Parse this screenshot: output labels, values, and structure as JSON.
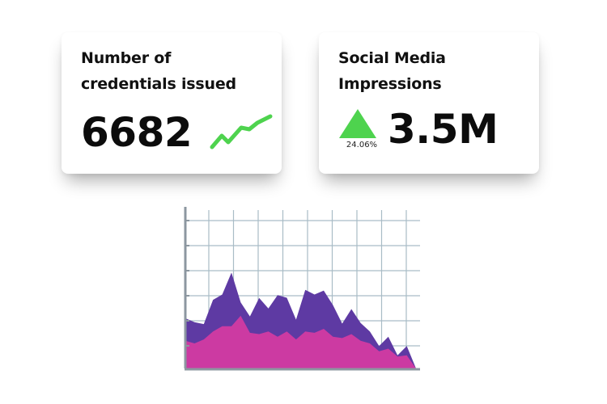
{
  "colors": {
    "accent_green": "#4ed34e",
    "series_purple": "#5e3aa3",
    "series_magenta": "#cc3aa2",
    "grid": "#a9bcc6",
    "axis": "#8c97a0"
  },
  "credentials_card": {
    "title_line1": "Number of",
    "title_line2": "credentials issued",
    "value": "6682",
    "trend_icon": "trend-up-sparkline-icon"
  },
  "social_card": {
    "title_line1": "Social Media",
    "title_line2": "Impressions",
    "change_percent": "24.06%",
    "change_icon": "up-triangle-icon",
    "value": "3.5M"
  },
  "area_chart": {
    "type": "area",
    "series": [
      {
        "values": [
          1.9,
          1.75,
          1.68,
          2.6,
          2.8,
          3.63,
          2.5,
          1.97,
          2.67,
          2.27,
          2.78,
          2.68,
          1.85,
          2.98,
          2.8,
          2.95,
          2.4,
          1.7,
          2.25,
          1.72,
          1.4,
          0.85,
          1.2,
          0.5,
          0.85,
          0.0
        ]
      },
      {
        "values": [
          1.05,
          0.95,
          1.1,
          1.4,
          1.6,
          1.6,
          2.0,
          1.35,
          1.3,
          1.4,
          1.2,
          1.4,
          1.1,
          1.4,
          1.35,
          1.5,
          1.2,
          1.15,
          1.3,
          1.05,
          0.95,
          0.65,
          0.75,
          0.45,
          0.5,
          0.0
        ]
      }
    ]
  }
}
